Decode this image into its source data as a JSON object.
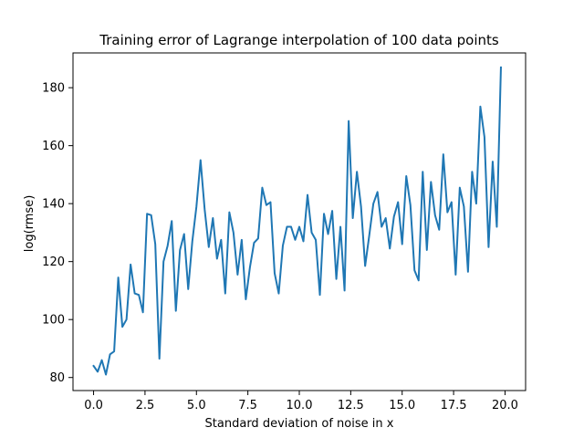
{
  "chart_data": {
    "type": "line",
    "title": "Training error of Lagrange interpolation of 100 data points",
    "xlabel": "Standard deviation of noise in x",
    "ylabel": "log(rmse)",
    "xlim": [
      -1.0,
      21.0
    ],
    "ylim": [
      75.5,
      192.0
    ],
    "xticks": [
      0.0,
      2.5,
      5.0,
      7.5,
      10.0,
      12.5,
      15.0,
      17.5,
      20.0
    ],
    "xtick_labels": [
      "0.0",
      "2.5",
      "5.0",
      "7.5",
      "10.0",
      "12.5",
      "15.0",
      "17.5",
      "20.0"
    ],
    "yticks": [
      80,
      100,
      120,
      140,
      160,
      180
    ],
    "ytick_labels": [
      "80",
      "100",
      "120",
      "140",
      "160",
      "180"
    ],
    "grid": false,
    "series": [
      {
        "color": "#1f77b4",
        "x": [
          0.0,
          0.2,
          0.4,
          0.6,
          0.8,
          1.0,
          1.2,
          1.4,
          1.6,
          1.8,
          2.0,
          2.2,
          2.4,
          2.6,
          2.8,
          3.0,
          3.2,
          3.4,
          3.6,
          3.8,
          4.0,
          4.2,
          4.4,
          4.6,
          4.8,
          5.0,
          5.2,
          5.4,
          5.6,
          5.8,
          6.0,
          6.2,
          6.4,
          6.6,
          6.8,
          7.0,
          7.2,
          7.4,
          7.6,
          7.8,
          8.0,
          8.2,
          8.4,
          8.6,
          8.8,
          9.0,
          9.2,
          9.4,
          9.6,
          9.8,
          10.0,
          10.2,
          10.4,
          10.6,
          10.8,
          11.0,
          11.2,
          11.4,
          11.6,
          11.8,
          12.0,
          12.2,
          12.4,
          12.6,
          12.8,
          13.0,
          13.2,
          13.4,
          13.6,
          13.8,
          14.0,
          14.2,
          14.4,
          14.6,
          14.8,
          15.0,
          15.2,
          15.4,
          15.6,
          15.8,
          16.0,
          16.2,
          16.4,
          16.6,
          16.8,
          17.0,
          17.2,
          17.4,
          17.6,
          17.8,
          18.0,
          18.2,
          18.4,
          18.6,
          18.8,
          19.0,
          19.2,
          19.4,
          19.6,
          19.8
        ],
        "y": [
          84.0,
          82.0,
          86.0,
          81.0,
          88.0,
          89.0,
          114.5,
          97.5,
          100.0,
          119.0,
          109.0,
          108.5,
          102.5,
          136.5,
          136.0,
          126.0,
          86.5,
          120.0,
          125.5,
          134.0,
          103.0,
          124.0,
          129.5,
          110.5,
          127.0,
          139.0,
          155.0,
          138.0,
          125.0,
          135.0,
          121.0,
          127.5,
          109.0,
          137.0,
          130.0,
          115.5,
          127.5,
          107.0,
          118.0,
          126.5,
          128.0,
          145.5,
          139.5,
          140.5,
          116.0,
          109.0,
          125.5,
          132.0,
          132.0,
          127.5,
          132.0,
          127.0,
          143.0,
          130.0,
          127.5,
          108.5,
          136.5,
          129.5,
          137.5,
          114.0,
          132.0,
          110.0,
          168.5,
          135.0,
          151.0,
          139.0,
          118.5,
          129.0,
          140.0,
          144.0,
          132.0,
          135.0,
          124.5,
          135.5,
          140.5,
          126.0,
          149.5,
          139.5,
          117.0,
          113.5,
          151.0,
          124.0,
          147.5,
          136.0,
          131.0,
          157.0,
          137.0,
          140.5,
          115.5,
          145.5,
          139.0,
          116.5,
          151.0,
          140.0,
          173.5,
          163.0,
          125.0,
          154.5,
          132.0,
          187.0
        ]
      }
    ]
  }
}
